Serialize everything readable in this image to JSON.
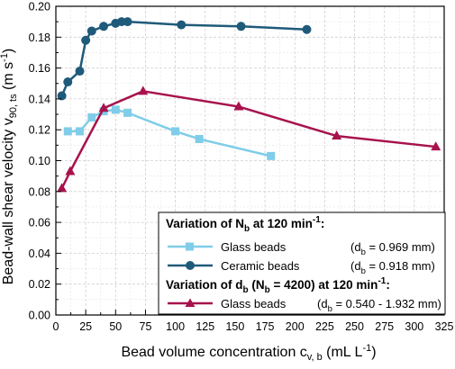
{
  "chart_data": {
    "type": "line",
    "xlabel": "Bead volume concentration c",
    "xlabel_sub": "v, b",
    "xlabel_unit_open": " (mL L",
    "xlabel_unit_sup": "-1",
    "xlabel_unit_close": ")",
    "ylabel": "Bead-wall shear velocity v",
    "ylabel_sub": "90, ts",
    "ylabel_unit_open": " (m s",
    "ylabel_unit_sup": "-1",
    "ylabel_unit_close": ")",
    "xlim": [
      0,
      325
    ],
    "ylim": [
      0,
      0.2
    ],
    "x_ticks": [
      0,
      25,
      50,
      75,
      100,
      125,
      150,
      175,
      200,
      225,
      250,
      275,
      300,
      325
    ],
    "x_tick_labels": [
      "0",
      "25",
      "50",
      "75",
      "100",
      "125",
      "150",
      "175",
      "200",
      "225",
      "250",
      "275",
      "300",
      "325"
    ],
    "y_ticks": [
      0,
      0.02,
      0.04,
      0.06,
      0.08,
      0.1,
      0.12,
      0.14,
      0.16,
      0.18,
      0.2
    ],
    "y_tick_labels": [
      "0.00",
      "0.02",
      "0.04",
      "0.06",
      "0.08",
      "0.10",
      "0.12",
      "0.14",
      "0.16",
      "0.18",
      "0.20"
    ],
    "grid": true,
    "legend_position": "bottom-right",
    "legend": {
      "header1_text": "Variation of N",
      "header1_sub": "b",
      "header1_tail": " at 120 min",
      "header1_sup": "-1",
      "header1_end": ":",
      "header2_text": "Variation of d",
      "header2_sub": "b",
      "header2_mid": " (N",
      "header2_sub2": "b",
      "header2_tail": " = 4200) at 120 min",
      "header2_sup": "-1",
      "header2_end": ":"
    },
    "series": [
      {
        "name": "Glass beads",
        "info_prefix": "(d",
        "info_sub": "b",
        "info_value": " = 0.969 mm)",
        "color": "#7fcde8",
        "marker": "square",
        "x": [
          10,
          20,
          30,
          40,
          50,
          60,
          100,
          120,
          180
        ],
        "y": [
          0.119,
          0.119,
          0.128,
          0.132,
          0.133,
          0.131,
          0.119,
          0.114,
          0.103
        ]
      },
      {
        "name": "Ceramic beads",
        "info_prefix": "(d",
        "info_sub": "b",
        "info_value": " = 0.918 mm)",
        "color": "#1f5a7a",
        "marker": "circle",
        "x": [
          5,
          10,
          20,
          25,
          30,
          40,
          50,
          55,
          60,
          105,
          155,
          210
        ],
        "y": [
          0.142,
          0.151,
          0.158,
          0.178,
          0.184,
          0.187,
          0.189,
          0.19,
          0.19,
          0.188,
          0.187,
          0.185
        ]
      },
      {
        "name": "Glass beads",
        "info_prefix": "(d",
        "info_sub": "b",
        "info_value": " = 0.540 - 1.932 mm)",
        "color": "#a8124d",
        "marker": "triangle",
        "x": [
          5,
          12,
          40,
          73,
          153,
          235,
          318
        ],
        "y": [
          0.082,
          0.093,
          0.134,
          0.145,
          0.135,
          0.116,
          0.109
        ]
      }
    ]
  }
}
